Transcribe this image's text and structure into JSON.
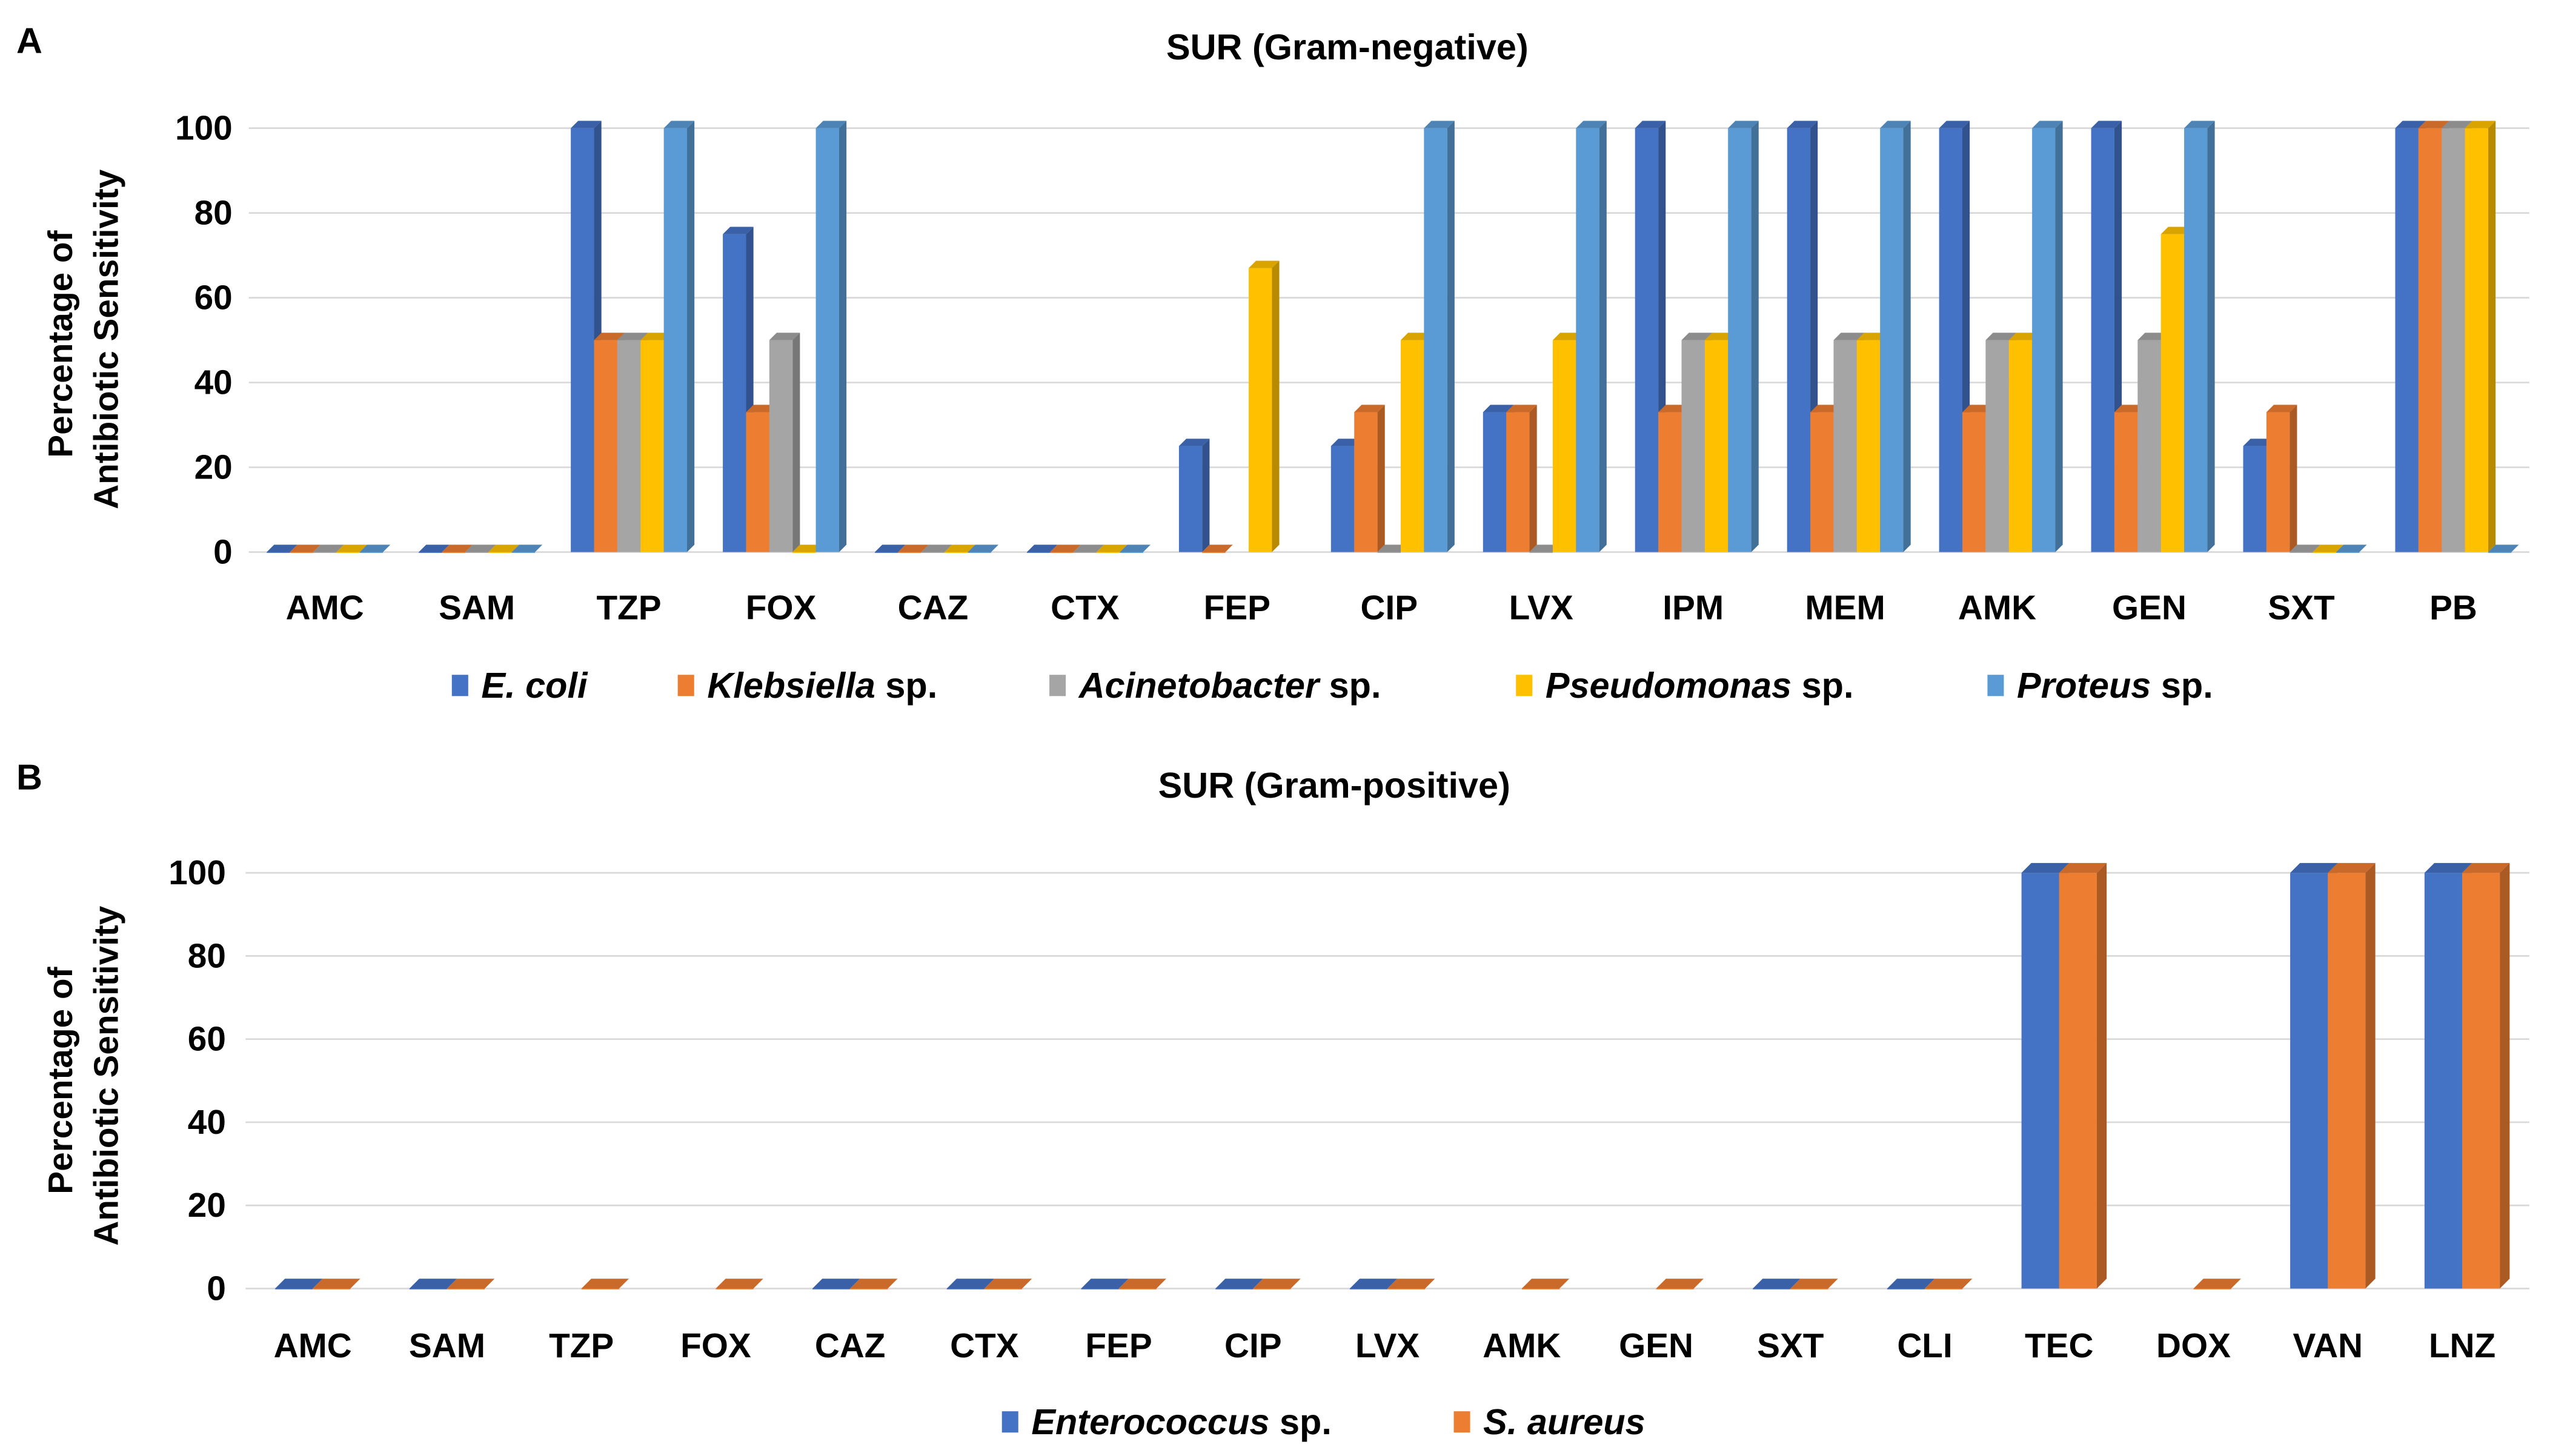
{
  "colors": {
    "E. coli": "#4472c4",
    "Klebsiella sp.": "#ed7d31",
    "Acinetobacter sp.": "#a5a5a5",
    "Pseudomonas sp.": "#ffc000",
    "Proteus sp.": "#5b9bd5",
    "Enterococcus sp.": "#4472c4",
    "S. aureus": "#ed7d31",
    "gridline": "#d9d9d9"
  },
  "panels": [
    {
      "letter": "A",
      "title": "SUR (Gram-negative)",
      "legend": [
        {
          "name": "E. coli",
          "italic": "E. coli",
          "suffix": ""
        },
        {
          "name": "Klebsiella sp.",
          "italic": "Klebsiella",
          "suffix": " sp."
        },
        {
          "name": "Acinetobacter sp.",
          "italic": "Acinetobacter",
          "suffix": " sp."
        },
        {
          "name": "Pseudomonas sp.",
          "italic": "Pseudomonas",
          "suffix": " sp."
        },
        {
          "name": "Proteus sp.",
          "italic": "Proteus",
          "suffix": " sp."
        }
      ]
    },
    {
      "letter": "B",
      "title": "SUR (Gram-positive)",
      "legend": [
        {
          "name": "Enterococcus sp.",
          "italic": "Enterococcus",
          "suffix": " sp."
        },
        {
          "name": "S. aureus",
          "italic": "S. aureus",
          "suffix": ""
        }
      ]
    }
  ],
  "chart_data": [
    {
      "type": "bar",
      "title": "SUR (Gram-negative)",
      "xlabel": "",
      "ylabel": "Percentage of Antibiotic Sensitivity",
      "ylim": [
        0,
        100
      ],
      "yticks": [
        0,
        20,
        40,
        60,
        80,
        100
      ],
      "grid": true,
      "legend_position": "bottom",
      "categories": [
        "AMC",
        "SAM",
        "TZP",
        "FOX",
        "CAZ",
        "CTX",
        "FEP",
        "CIP",
        "LVX",
        "IPM",
        "MEM",
        "AMK",
        "GEN",
        "SXT",
        "PB"
      ],
      "series": [
        {
          "name": "E. coli",
          "values": [
            0,
            0,
            100,
            75,
            0,
            0,
            25,
            25,
            33,
            100,
            100,
            100,
            100,
            25,
            100
          ]
        },
        {
          "name": "Klebsiella sp.",
          "values": [
            0,
            0,
            50,
            33,
            0,
            0,
            0,
            33,
            33,
            33,
            33,
            33,
            33,
            33,
            100
          ]
        },
        {
          "name": "Acinetobacter sp.",
          "values": [
            0,
            0,
            50,
            50,
            0,
            0,
            null,
            0,
            0,
            50,
            50,
            50,
            50,
            0,
            100
          ]
        },
        {
          "name": "Pseudomonas sp.",
          "values": [
            0,
            0,
            50,
            0,
            0,
            0,
            67,
            50,
            50,
            50,
            50,
            50,
            75,
            0,
            100
          ]
        },
        {
          "name": "Proteus sp.",
          "values": [
            0,
            0,
            100,
            100,
            0,
            0,
            null,
            100,
            100,
            100,
            100,
            100,
            100,
            0,
            0
          ]
        }
      ]
    },
    {
      "type": "bar",
      "title": "SUR (Gram-positive)",
      "xlabel": "",
      "ylabel": "Percentage of Antibiotic Sensitivity",
      "ylim": [
        0,
        100
      ],
      "yticks": [
        0,
        20,
        40,
        60,
        80,
        100
      ],
      "grid": true,
      "legend_position": "bottom",
      "categories": [
        "AMC",
        "SAM",
        "TZP",
        "FOX",
        "CAZ",
        "CTX",
        "FEP",
        "CIP",
        "LVX",
        "AMK",
        "GEN",
        "SXT",
        "CLI",
        "TEC",
        "DOX",
        "VAN",
        "LNZ"
      ],
      "series": [
        {
          "name": "Enterococcus sp.",
          "values": [
            0,
            0,
            null,
            null,
            0,
            0,
            0,
            0,
            0,
            null,
            null,
            0,
            0,
            100,
            null,
            100,
            100
          ]
        },
        {
          "name": "S. aureus",
          "values": [
            0,
            0,
            0,
            0,
            0,
            0,
            0,
            0,
            0,
            0,
            0,
            0,
            0,
            100,
            0,
            100,
            100
          ]
        }
      ]
    }
  ]
}
